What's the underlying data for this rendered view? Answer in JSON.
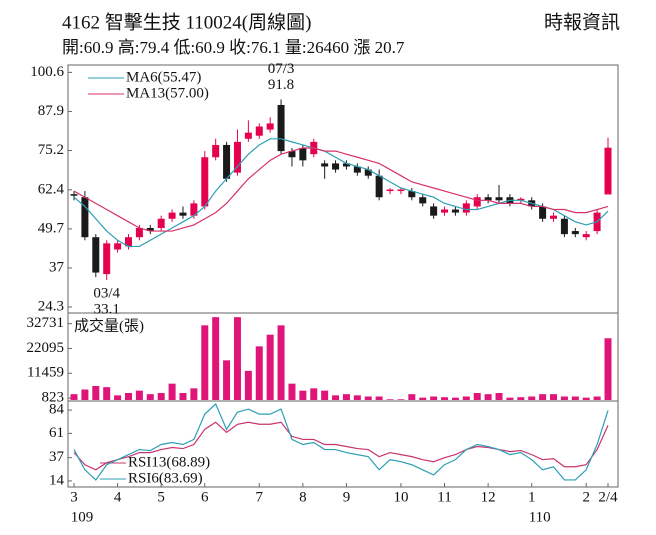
{
  "chart_data": {
    "type": "candlestick",
    "title": "4162  智擊生技 110024(周線圖)",
    "source": "時報資訊",
    "subtitle": "開:60.9 高:79.4 低:60.9 收:76.1 量:26460 漲 20.7",
    "categories": [
      "3",
      null,
      null,
      null,
      "4",
      null,
      null,
      null,
      "5",
      null,
      null,
      null,
      "6",
      null,
      null,
      null,
      null,
      "7",
      null,
      null,
      null,
      "8",
      null,
      null,
      null,
      "9",
      null,
      null,
      null,
      null,
      "10",
      null,
      null,
      null,
      "11",
      null,
      null,
      null,
      "12",
      null,
      null,
      null,
      "1",
      null,
      null,
      null,
      null,
      "2",
      null,
      "2/4"
    ],
    "year_labels": [
      "109",
      null,
      null,
      null,
      null,
      null,
      null,
      null,
      null,
      null,
      null,
      null,
      null,
      null,
      null,
      null,
      null,
      null,
      null,
      null,
      null,
      null,
      null,
      null,
      null,
      null,
      null,
      null,
      null,
      null,
      null,
      null,
      null,
      null,
      null,
      null,
      null,
      null,
      null,
      null,
      null,
      null,
      "110",
      null,
      null,
      null,
      null,
      null,
      null,
      null
    ],
    "open": [
      61,
      60,
      47,
      35,
      43,
      44,
      47,
      50,
      50,
      53,
      55,
      54,
      57,
      73,
      77,
      68,
      79,
      80,
      82,
      90,
      75,
      76,
      74,
      71,
      71,
      71,
      70,
      69,
      67,
      62,
      62,
      62,
      60,
      57,
      55,
      56,
      55,
      57,
      60,
      60,
      60,
      59,
      59,
      57,
      53,
      53,
      49,
      47,
      49,
      60.9
    ],
    "close": [
      60.5,
      47,
      35.5,
      45,
      45,
      47,
      50,
      49,
      53,
      55,
      54,
      58,
      73,
      77,
      66,
      78,
      81,
      83,
      84,
      75,
      73,
      72,
      78,
      70,
      69,
      70,
      68,
      67,
      60,
      62.5,
      62.5,
      60,
      58,
      54,
      56,
      55,
      58,
      60,
      59,
      59,
      58,
      59.5,
      57,
      53,
      54,
      48,
      48,
      48,
      55,
      76.1
    ],
    "high": [
      62,
      62,
      48,
      46,
      46,
      48,
      51,
      51,
      54,
      56,
      57,
      59,
      75,
      79,
      78,
      82,
      85,
      84,
      86,
      91.8,
      76,
      77,
      79,
      72,
      72,
      72,
      71,
      70,
      69,
      63,
      63,
      63,
      61,
      58,
      57,
      57,
      59,
      61,
      61,
      64,
      61,
      60,
      60,
      58,
      55,
      54,
      50,
      49,
      56,
      79.4
    ],
    "low": [
      59,
      46,
      34,
      33.1,
      42,
      43,
      46,
      48,
      49,
      52,
      53,
      53,
      56,
      72,
      65,
      67,
      78,
      79,
      81,
      74,
      70,
      70,
      73,
      66,
      68,
      69,
      67,
      66,
      59,
      61,
      61,
      59,
      57,
      53,
      54,
      54,
      54,
      56,
      58,
      58,
      57,
      58,
      56,
      52,
      52,
      47,
      47,
      46,
      48,
      60.9
    ],
    "ylim": [
      23,
      103
    ],
    "yticks": [
      100.6,
      87.9,
      75.2,
      62.4,
      49.7,
      37.0,
      24.3
    ],
    "up_color": "#e5004f",
    "down_color": "#1a1a1a",
    "series": [
      {
        "name": "MA6(55.47)",
        "color": "#2a9fb5",
        "values": [
          60,
          57,
          53,
          49,
          46,
          44,
          44,
          46,
          48,
          50,
          52,
          54,
          57,
          62,
          66,
          70,
          74,
          77,
          79,
          79,
          78,
          77,
          76,
          75,
          73,
          71,
          70,
          69,
          67,
          65,
          63,
          62,
          61,
          60,
          58,
          57,
          56,
          56,
          57,
          58,
          59,
          59,
          58,
          57,
          56,
          54,
          52,
          51,
          52,
          55.47
        ]
      },
      {
        "name": "MA13(57.00)",
        "color": "#d8306a",
        "values": [
          62,
          60,
          58,
          56,
          54,
          52,
          50,
          49,
          49,
          49,
          50,
          51,
          53,
          55,
          58,
          62,
          66,
          69,
          72,
          74,
          75,
          76,
          76,
          75,
          75,
          74,
          73,
          72,
          71,
          69,
          67,
          65,
          64,
          63,
          62,
          61,
          60,
          59,
          59,
          58,
          58,
          58,
          57,
          57,
          56,
          56,
          55,
          55,
          56,
          57
        ]
      }
    ],
    "annotations": [
      {
        "label": "07/3",
        "value_label": "91.8",
        "value": 91.8
      },
      {
        "label": "03/4",
        "value_label": "33.1",
        "value": 33.1
      }
    ],
    "volume": {
      "title": "成交量(張)",
      "color": "#e0157a",
      "values": [
        2500,
        4500,
        6000,
        5500,
        2000,
        3000,
        4000,
        2500,
        3000,
        7000,
        3000,
        5000,
        32000,
        35500,
        17000,
        35500,
        12500,
        23000,
        28000,
        32000,
        7000,
        4000,
        5000,
        4000,
        2000,
        2500,
        2000,
        1500,
        1500,
        300,
        300,
        2500,
        1000,
        1500,
        1200,
        1000,
        1500,
        3000,
        2500,
        3000,
        1000,
        1200,
        1500,
        2500,
        2500,
        1500,
        1500,
        1000,
        1500,
        26460
      ],
      "ylim": [
        0,
        36000
      ],
      "yticks": [
        32731,
        22095,
        11459,
        823
      ]
    },
    "rsi": {
      "ylim": [
        8,
        92
      ],
      "yticks": [
        84,
        61,
        37,
        14
      ],
      "series": [
        {
          "name": "RSI13(68.89)",
          "color": "#c8336e",
          "values": [
            42,
            30,
            25,
            32,
            35,
            38,
            42,
            42,
            45,
            47,
            46,
            50,
            65,
            72,
            62,
            70,
            72,
            70,
            70,
            72,
            58,
            55,
            55,
            50,
            50,
            48,
            46,
            45,
            38,
            42,
            40,
            38,
            35,
            33,
            37,
            40,
            45,
            48,
            47,
            45,
            43,
            44,
            40,
            35,
            36,
            28,
            28,
            30,
            45,
            68.89
          ]
        },
        {
          "name": "RSI6(83.69)",
          "color": "#2a9fb5",
          "values": [
            45,
            25,
            15,
            30,
            35,
            40,
            45,
            44,
            50,
            52,
            50,
            55,
            80,
            90,
            65,
            82,
            85,
            80,
            80,
            85,
            55,
            50,
            52,
            45,
            45,
            42,
            40,
            38,
            25,
            35,
            33,
            30,
            25,
            20,
            30,
            35,
            45,
            50,
            48,
            45,
            40,
            42,
            35,
            25,
            28,
            15,
            15,
            25,
            50,
            83.69
          ]
        }
      ]
    }
  }
}
